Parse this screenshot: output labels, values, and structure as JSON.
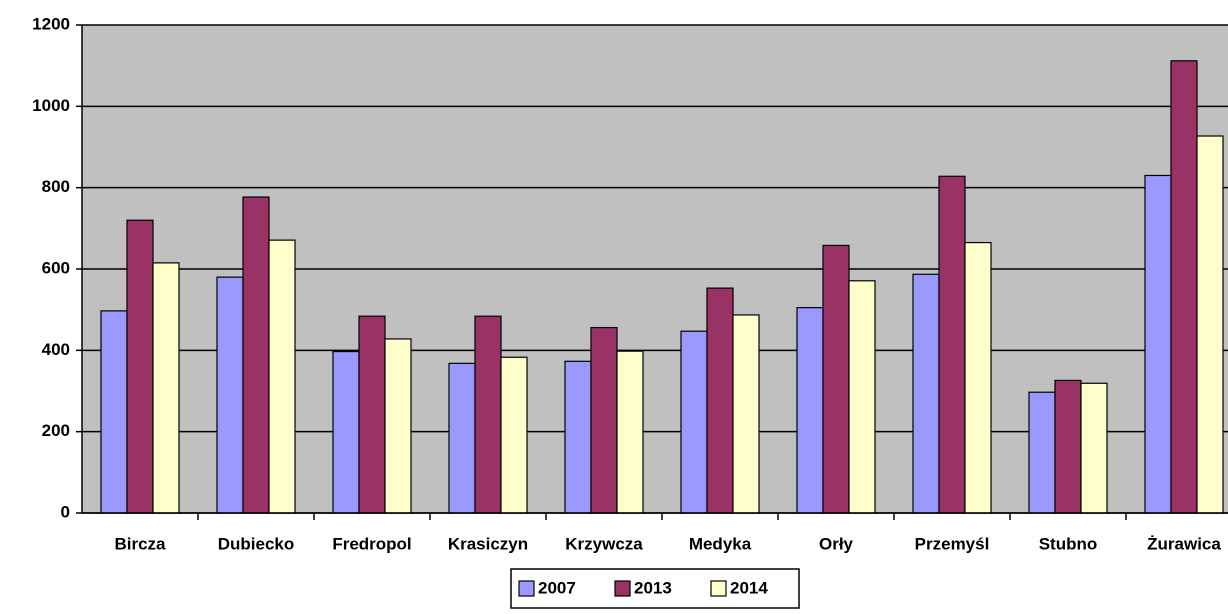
{
  "chart_data": {
    "type": "bar",
    "categories": [
      "Bircza",
      "Dubiecko",
      "Fredropol",
      "Krasiczyn",
      "Krzywcza",
      "Medyka",
      "Orły",
      "Przemyśl",
      "Stubno",
      "Żurawica"
    ],
    "series": [
      {
        "name": "2007",
        "color": "#9999ff",
        "values": [
          497,
          580,
          397,
          368,
          373,
          447,
          505,
          587,
          297,
          830
        ]
      },
      {
        "name": "2013",
        "color": "#993366",
        "values": [
          720,
          777,
          484,
          484,
          456,
          553,
          658,
          828,
          326,
          1112
        ]
      },
      {
        "name": "2014",
        "color": "#ffffcc",
        "values": [
          615,
          671,
          428,
          383,
          398,
          487,
          571,
          665,
          319,
          927
        ]
      }
    ],
    "ylim": [
      0,
      1200
    ],
    "yticks": [
      0,
      200,
      400,
      600,
      800,
      1000,
      1200
    ],
    "grid": true,
    "legend": "bottom"
  }
}
